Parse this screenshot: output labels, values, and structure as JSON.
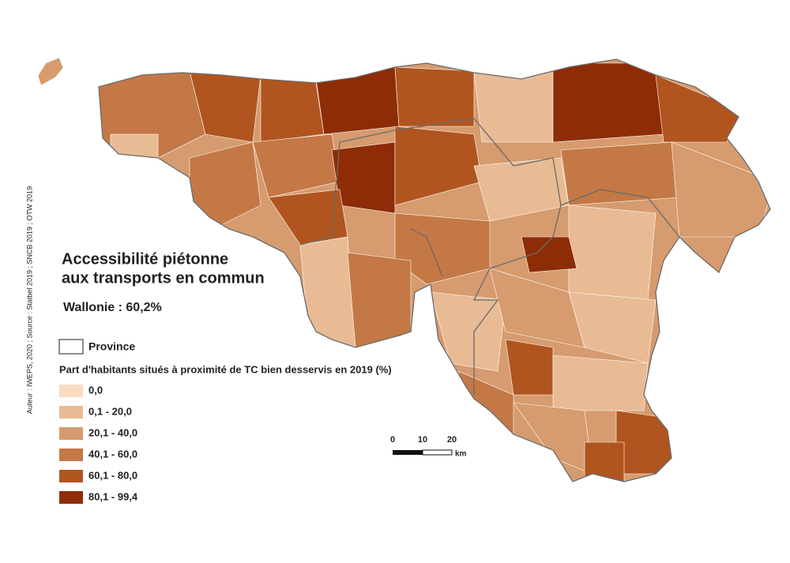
{
  "title": [
    "Accessibilité piétonne",
    "aux transports en commun"
  ],
  "subtitle": "Wallonie : 60,2%",
  "province_label": "Province",
  "legend": {
    "title": "Part d'habitants situés à proximité de TC bien desservis en 2019 (%)",
    "classes": [
      {
        "label": "0,0",
        "color": "#f9dcc3"
      },
      {
        "label": "0,1 - 20,0",
        "color": "#e8bb95"
      },
      {
        "label": "20,1 - 40,0",
        "color": "#d69b6e"
      },
      {
        "label": "40,1 - 60,0",
        "color": "#c47845"
      },
      {
        "label": "60,1 - 80,0",
        "color": "#b0551f"
      },
      {
        "label": "80,1 - 99,4",
        "color": "#8e2c07"
      }
    ]
  },
  "scale": {
    "ticks": [
      "0",
      "10",
      "20"
    ],
    "unit": "km"
  },
  "source": "Auteur : IWEPS, 2020 ; Source : Statbel 2019 ; SNCB 2019 ; OTW 2019"
}
